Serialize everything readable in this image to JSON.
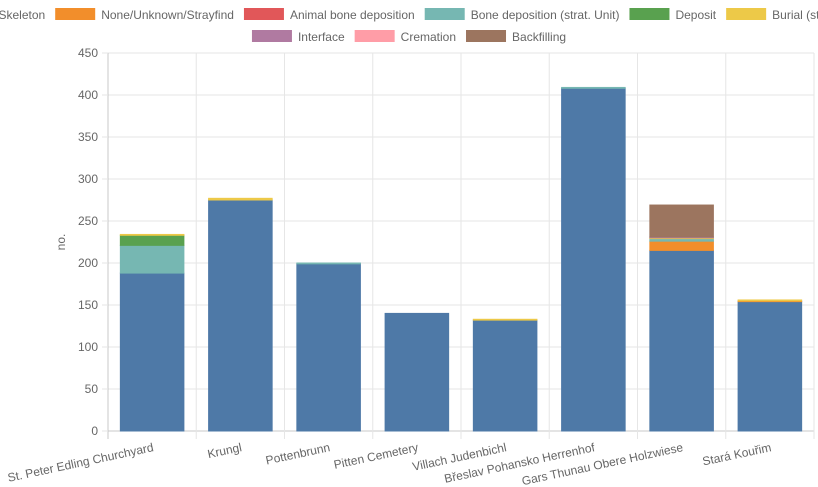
{
  "chart_data": {
    "type": "bar",
    "stacked": true,
    "ylabel": "no.",
    "xlabel": "",
    "ylim": [
      0,
      450
    ],
    "y_ticks": [
      0,
      50,
      100,
      150,
      200,
      250,
      300,
      350,
      400,
      450
    ],
    "grid": true,
    "legend_position": "top",
    "categories": [
      "St. Peter Edling Churchyard",
      "Krungl",
      "Pottenbrunn",
      "Pitten Cemetery",
      "Villach Judenbichl",
      "Břeslav Pohansko Herrenhof",
      "Gars Thunau Obere Holzwiese",
      "Stará Kouřim"
    ],
    "series": [
      {
        "name": "Skeleton",
        "color": "#4e79a7",
        "values": [
          188,
          275,
          199,
          140,
          132,
          408,
          215,
          154
        ]
      },
      {
        "name": "None/Unknown/Strayfind",
        "color": "#f28e2b",
        "values": [
          0,
          0,
          0,
          0,
          0,
          0,
          11,
          1
        ]
      },
      {
        "name": "Animal bone deposition",
        "color": "#e15759",
        "values": [
          0,
          0,
          0,
          0,
          0,
          0,
          0,
          0
        ]
      },
      {
        "name": "Bone deposition (strat. Unit)",
        "color": "#76b7b2",
        "values": [
          33,
          0,
          1,
          0,
          0,
          1,
          3,
          0
        ]
      },
      {
        "name": "Deposit",
        "color": "#59a14f",
        "values": [
          12,
          0,
          0,
          0,
          0,
          0,
          0,
          0
        ]
      },
      {
        "name": "Burial (strat. Unit)",
        "color": "#edc948",
        "values": [
          1,
          2,
          0,
          0,
          1,
          0,
          1,
          1
        ]
      },
      {
        "name": "Interface",
        "color": "#b07aa1",
        "values": [
          0,
          0,
          0,
          0,
          0,
          0,
          1,
          0
        ]
      },
      {
        "name": "Cremation",
        "color": "#ff9da7",
        "values": [
          0,
          0,
          0,
          0,
          0,
          0,
          0,
          0
        ]
      },
      {
        "name": "Backfilling",
        "color": "#9c755f",
        "values": [
          0,
          0,
          0,
          0,
          0,
          0,
          38,
          0
        ]
      }
    ]
  }
}
